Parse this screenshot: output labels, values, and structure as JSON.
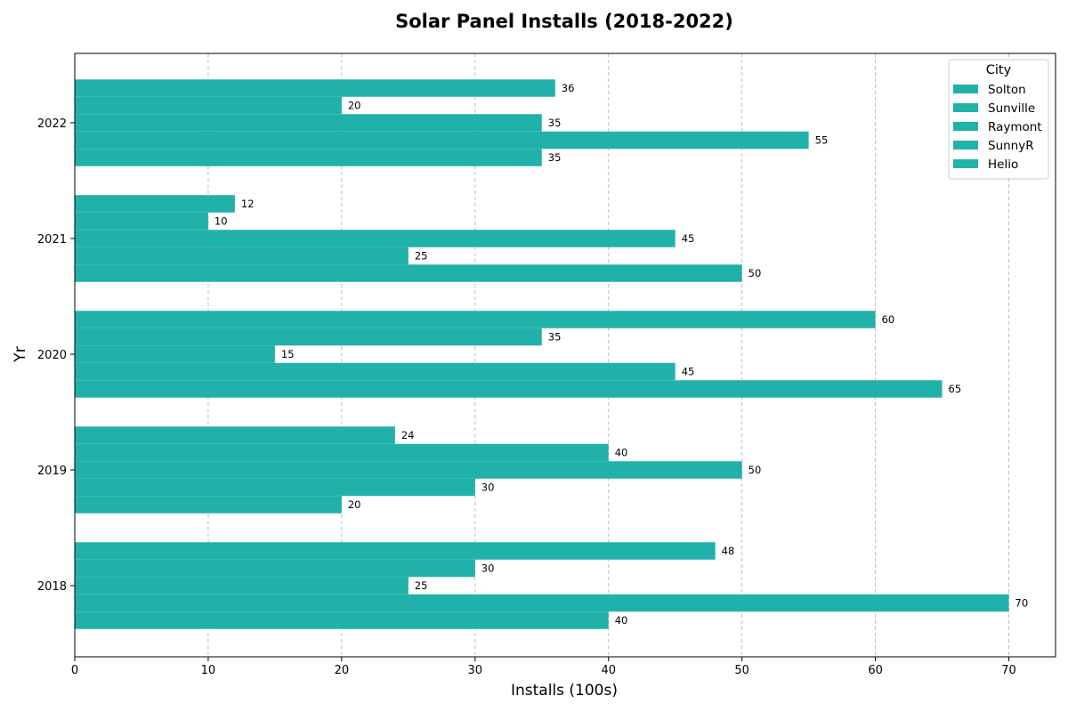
{
  "chart_data": {
    "type": "bar",
    "orientation": "horizontal",
    "title": "Solar Panel Installs (2018-2022)",
    "xlabel": "Installs (100s)",
    "ylabel": "Yr",
    "categories": [
      "2018",
      "2019",
      "2020",
      "2021",
      "2022"
    ],
    "series": [
      {
        "name": "Solton",
        "values": [
          48,
          24,
          60,
          12,
          36
        ]
      },
      {
        "name": "Sunville",
        "values": [
          30,
          40,
          35,
          10,
          20
        ]
      },
      {
        "name": "Raymont",
        "values": [
          25,
          50,
          15,
          45,
          35
        ]
      },
      {
        "name": "SunnyR",
        "values": [
          70,
          30,
          45,
          25,
          55
        ]
      },
      {
        "name": "Helio",
        "values": [
          40,
          20,
          65,
          50,
          35
        ]
      }
    ],
    "xlim": [
      0,
      73.5
    ],
    "xticks": [
      0,
      10,
      20,
      30,
      40,
      50,
      60,
      70
    ],
    "bar_color": "#20b2aa",
    "grid": "x-dashed",
    "legend": {
      "title": "City",
      "placement": "top-right"
    },
    "data_labels": true
  }
}
